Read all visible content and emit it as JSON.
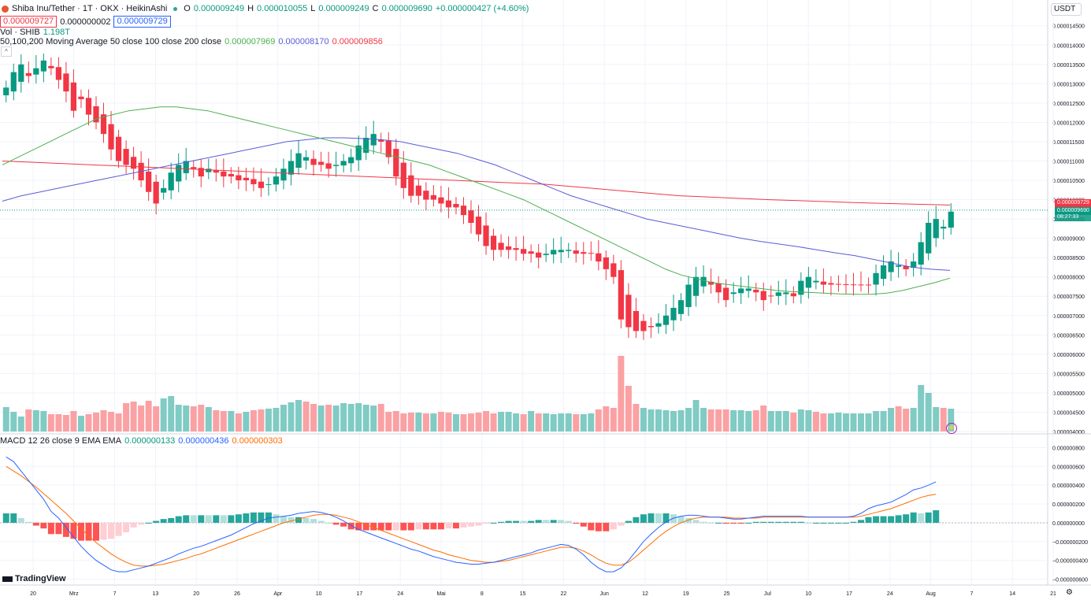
{
  "header": {
    "symbol": "Shiba Inu/Tether · 1T · OKX · HeikinAshi",
    "open_label": "O",
    "open": "0.000009249",
    "high_label": "H",
    "high": "0.000010055",
    "low_label": "L",
    "low": "0.000009249",
    "close_label": "C",
    "close": "0.000009690",
    "change": "+0.000000427 (+4.60%)",
    "bid": "0.000009727",
    "spread": "0.000000002",
    "ask": "0.000009729",
    "vol_label": "Vol · SHIB",
    "vol_value": "1.198T",
    "ma_label": "50,100,200 Moving Average 50 close 100 close 200 close",
    "ma50": "0.000007969",
    "ma100": "0.000008170",
    "ma200": "0.000009856",
    "macd_label": "MACD 12 26 close 9 EMA EMA",
    "macd_hist": "0.000000133",
    "macd_line": "0.000000436",
    "macd_signal": "0.000000303"
  },
  "currency_selector": "USDT",
  "logo_text": "TradingView",
  "price_flags": {
    "last": "0.000009729",
    "close": "0.000009690",
    "countdown": "08:27:33"
  },
  "colors": {
    "up": "#089981",
    "down": "#f23645",
    "vol_up": "#80cbc4",
    "vol_down": "#faa1a4",
    "ma50": "#4caf50",
    "ma100": "#5b5bd6",
    "ma200": "#f23645",
    "macd": "#2962ff",
    "signal": "#ff6d00",
    "hist_up": "#26a69a",
    "hist_up_light": "#b2dfdb",
    "hist_down": "#ff5252",
    "hist_down_light": "#ffcdd2"
  },
  "chart_data": {
    "type": "candlestick",
    "x_ticks": [
      "20",
      "Mrz",
      "7",
      "13",
      "20",
      "26",
      "Apr",
      "10",
      "17",
      "24",
      "Mai",
      "8",
      "15",
      "22",
      "Jun",
      "12",
      "19",
      "25",
      "Jul",
      "10",
      "17",
      "24",
      "Aug",
      "7",
      "14",
      "21"
    ],
    "price_ticks": [
      "0.000014500",
      "0.000014000",
      "0.000013500",
      "0.000013000",
      "0.000012500",
      "0.000012000",
      "0.000011500",
      "0.000011000",
      "0.000010500",
      "0.000010000",
      "0.000009500",
      "0.000009000",
      "0.000008500",
      "0.000008000",
      "0.000007500",
      "0.000007000",
      "0.000006500",
      "0.000006000",
      "0.000005500",
      "0.000005000",
      "0.000004500",
      "0.000004000"
    ],
    "price_range": [
      4e-06,
      1.48e-05
    ],
    "macd_ticks": [
      "0.000000800",
      "0.000000600",
      "0.000000400",
      "0.000000200",
      "0.000000000",
      "−0.000000200",
      "−0.000000400",
      "−0.000000600"
    ],
    "macd_range": [
      -6.2e-07,
      8.2e-07
    ],
    "closes": [
      12.9,
      13.3,
      13.5,
      13.2,
      13.4,
      13.6,
      13.4,
      13.1,
      12.8,
      12.3,
      12.6,
      12.2,
      12.0,
      11.7,
      11.3,
      11.0,
      10.9,
      10.8,
      10.5,
      10.2,
      9.9,
      10.3,
      10.7,
      10.9,
      11.0,
      10.8,
      10.6,
      10.8,
      10.7,
      10.6,
      10.6,
      10.5,
      10.5,
      10.4,
      10.3,
      10.4,
      10.6,
      10.8,
      11.0,
      11.2,
      11.1,
      10.9,
      10.9,
      10.8,
      10.9,
      11.0,
      11.1,
      11.4,
      11.6,
      11.7,
      11.5,
      11.1,
      10.6,
      10.3,
      10.1,
      10.1,
      10.0,
      10.0,
      9.9,
      9.8,
      9.8,
      9.6,
      9.4,
      9.1,
      8.8,
      8.7,
      8.7,
      8.7,
      8.7,
      8.6,
      8.6,
      8.5,
      8.6,
      8.7,
      8.7,
      8.7,
      8.6,
      8.6,
      8.6,
      8.4,
      8.2,
      8.0,
      6.9,
      6.7,
      6.6,
      6.6,
      6.7,
      6.8,
      7.0,
      7.2,
      7.4,
      7.8,
      8.0,
      8.0,
      7.8,
      7.6,
      7.4,
      7.6,
      7.7,
      7.7,
      7.6,
      7.4,
      7.5,
      7.6,
      7.6,
      7.5,
      7.9,
      8.0,
      7.9,
      7.8,
      7.8,
      7.8,
      7.8,
      7.8,
      7.8,
      7.8,
      8.1,
      8.3,
      8.4,
      8.3,
      8.2,
      8.4,
      8.9,
      9.4,
      9.5,
      9.3,
      9.69
    ],
    "volumes": [
      3.1,
      2.5,
      1.9,
      2.8,
      2.7,
      2.6,
      2.2,
      2.2,
      2.1,
      2.6,
      2.0,
      2.2,
      2.4,
      2.7,
      2.5,
      2.3,
      3.6,
      3.8,
      3.3,
      3.9,
      3.2,
      4.2,
      4.5,
      3.4,
      3.3,
      3.2,
      3.4,
      3.1,
      2.7,
      2.6,
      2.6,
      2.3,
      2.5,
      2.7,
      2.8,
      2.9,
      3.0,
      3.4,
      3.7,
      4.0,
      3.8,
      3.5,
      3.3,
      3.4,
      3.3,
      3.6,
      3.5,
      3.6,
      3.4,
      3.3,
      3.5,
      2.5,
      2.6,
      2.3,
      2.4,
      2.4,
      2.3,
      2.3,
      2.5,
      2.4,
      2.2,
      2.2,
      2.3,
      2.4,
      2.6,
      2.3,
      2.5,
      2.5,
      2.3,
      2.2,
      2.6,
      2.3,
      2.3,
      2.2,
      2.3,
      2.3,
      2.2,
      2.2,
      2.3,
      2.8,
      3.2,
      3.0,
      9.6,
      5.8,
      3.5,
      3.0,
      2.8,
      2.8,
      2.7,
      2.6,
      2.7,
      3.0,
      4.0,
      3.0,
      2.8,
      2.8,
      2.8,
      2.7,
      2.7,
      2.6,
      2.7,
      3.3,
      2.6,
      2.6,
      2.6,
      2.4,
      2.8,
      2.7,
      2.5,
      2.3,
      2.3,
      2.4,
      2.3,
      2.3,
      2.3,
      2.3,
      2.6,
      2.6,
      3.0,
      3.2,
      2.9,
      3.0,
      5.9,
      4.9,
      3.1,
      3.0,
      2.9
    ],
    "vol_range": [
      0,
      10
    ],
    "macd": [
      0.7,
      0.65,
      0.55,
      0.45,
      0.35,
      0.25,
      0.12,
      0.05,
      -0.05,
      -0.15,
      -0.25,
      -0.33,
      -0.4,
      -0.45,
      -0.5,
      -0.52,
      -0.52,
      -0.5,
      -0.48,
      -0.46,
      -0.43,
      -0.4,
      -0.37,
      -0.33,
      -0.3,
      -0.27,
      -0.25,
      -0.22,
      -0.19,
      -0.16,
      -0.13,
      -0.09,
      -0.05,
      -0.01,
      0.02,
      0.05,
      0.06,
      0.07,
      0.08,
      0.1,
      0.11,
      0.12,
      0.11,
      0.09,
      0.06,
      0.02,
      -0.03,
      -0.07,
      -0.1,
      -0.13,
      -0.16,
      -0.19,
      -0.22,
      -0.25,
      -0.28,
      -0.3,
      -0.33,
      -0.36,
      -0.38,
      -0.4,
      -0.42,
      -0.43,
      -0.44,
      -0.44,
      -0.43,
      -0.42,
      -0.4,
      -0.38,
      -0.36,
      -0.34,
      -0.32,
      -0.29,
      -0.27,
      -0.25,
      -0.23,
      -0.24,
      -0.28,
      -0.34,
      -0.42,
      -0.48,
      -0.52,
      -0.52,
      -0.48,
      -0.4,
      -0.3,
      -0.2,
      -0.12,
      -0.05,
      0.01,
      0.05,
      0.07,
      0.08,
      0.08,
      0.07,
      0.06,
      0.06,
      0.05,
      0.04,
      0.04,
      0.05,
      0.06,
      0.07,
      0.07,
      0.07,
      0.07,
      0.07,
      0.07,
      0.06,
      0.06,
      0.06,
      0.06,
      0.06,
      0.06,
      0.07,
      0.1,
      0.15,
      0.18,
      0.2,
      0.22,
      0.26,
      0.3,
      0.35,
      0.37,
      0.4,
      0.436
    ],
    "signal": [
      0.6,
      0.55,
      0.5,
      0.44,
      0.38,
      0.31,
      0.24,
      0.17,
      0.1,
      0.02,
      -0.06,
      -0.14,
      -0.21,
      -0.27,
      -0.33,
      -0.38,
      -0.42,
      -0.45,
      -0.46,
      -0.46,
      -0.45,
      -0.44,
      -0.42,
      -0.4,
      -0.38,
      -0.35,
      -0.33,
      -0.3,
      -0.27,
      -0.24,
      -0.21,
      -0.18,
      -0.15,
      -0.12,
      -0.09,
      -0.06,
      -0.03,
      0.0,
      0.02,
      0.04,
      0.06,
      0.08,
      0.09,
      0.09,
      0.08,
      0.06,
      0.04,
      0.01,
      -0.02,
      -0.05,
      -0.08,
      -0.11,
      -0.14,
      -0.17,
      -0.2,
      -0.23,
      -0.26,
      -0.29,
      -0.31,
      -0.34,
      -0.36,
      -0.38,
      -0.4,
      -0.41,
      -0.42,
      -0.42,
      -0.41,
      -0.4,
      -0.38,
      -0.36,
      -0.34,
      -0.32,
      -0.3,
      -0.28,
      -0.26,
      -0.26,
      -0.27,
      -0.3,
      -0.34,
      -0.39,
      -0.43,
      -0.45,
      -0.45,
      -0.42,
      -0.36,
      -0.29,
      -0.22,
      -0.15,
      -0.09,
      -0.04,
      0.0,
      0.03,
      0.05,
      0.06,
      0.06,
      0.06,
      0.06,
      0.05,
      0.05,
      0.05,
      0.05,
      0.06,
      0.06,
      0.06,
      0.06,
      0.06,
      0.06,
      0.06,
      0.06,
      0.06,
      0.06,
      0.06,
      0.06,
      0.06,
      0.07,
      0.09,
      0.11,
      0.13,
      0.15,
      0.18,
      0.21,
      0.24,
      0.27,
      0.29,
      0.303
    ],
    "ma50": [
      10.9,
      11.1,
      11.3,
      11.5,
      11.7,
      11.9,
      12.1,
      12.2,
      12.3,
      12.35,
      12.4,
      12.4,
      12.35,
      12.3,
      12.2,
      12.1,
      12.0,
      11.9,
      11.8,
      11.7,
      11.6,
      11.5,
      11.4,
      11.3,
      11.2,
      11.1,
      11.0,
      10.9,
      10.75,
      10.6,
      10.45,
      10.3,
      10.15,
      10.0,
      9.8,
      9.6,
      9.4,
      9.2,
      9.0,
      8.8,
      8.6,
      8.4,
      8.2,
      8.05,
      7.95,
      7.85,
      7.8,
      7.75,
      7.7,
      7.65,
      7.62,
      7.6,
      7.58,
      7.56,
      7.55,
      7.55,
      7.58,
      7.65,
      7.75,
      7.85,
      7.97
    ],
    "ma100": [
      9.96,
      10.1,
      10.2,
      10.3,
      10.4,
      10.5,
      10.6,
      10.7,
      10.8,
      10.9,
      11.0,
      11.1,
      11.2,
      11.3,
      11.4,
      11.5,
      11.55,
      11.6,
      11.6,
      11.58,
      11.55,
      11.5,
      11.4,
      11.3,
      11.2,
      11.05,
      10.9,
      10.7,
      10.5,
      10.3,
      10.1,
      9.95,
      9.8,
      9.65,
      9.5,
      9.4,
      9.3,
      9.2,
      9.1,
      9.0,
      8.92,
      8.85,
      8.78,
      8.7,
      8.62,
      8.55,
      8.45,
      8.35,
      8.25,
      8.2,
      8.17
    ],
    "ma200": [
      11.0,
      10.95,
      10.9,
      10.85,
      10.8,
      10.75,
      10.7,
      10.65,
      10.6,
      10.55,
      10.5,
      10.45,
      10.4,
      10.3,
      10.2,
      10.1,
      10.05,
      10.0,
      9.96,
      9.92,
      9.89,
      9.86
    ]
  }
}
